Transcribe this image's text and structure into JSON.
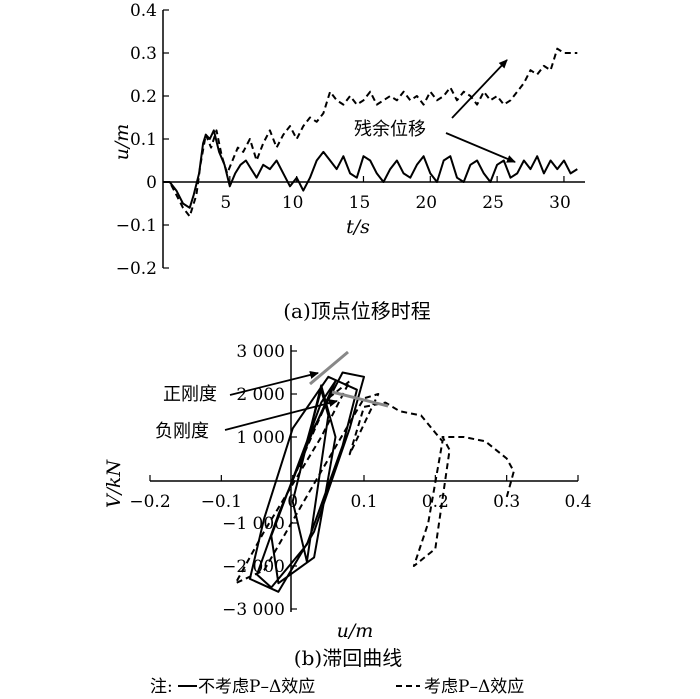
{
  "chart_data": [
    {
      "type": "line",
      "caption": "(a)顶点位移时程",
      "xlabel": "t/s",
      "ylabel": "u/m",
      "xlim": [
        0,
        31.5
      ],
      "ylim": [
        -0.2,
        0.4
      ],
      "xticks": [
        "5",
        "10",
        "15",
        "20",
        "25",
        "30"
      ],
      "yticks": [
        "0.4",
        "0.3",
        "0.2",
        "0.1",
        "0",
        "−0.1",
        "−0.2"
      ],
      "annotation": "残余位移",
      "series": [
        {
          "name": "不考虑P–Δ效应",
          "style": "solid",
          "x": [
            0,
            0.5,
            1,
            1.5,
            2,
            2.3,
            2.7,
            3,
            3.2,
            3.5,
            3.8,
            4.2,
            4.6,
            5,
            5.4,
            5.8,
            6.2,
            6.6,
            7,
            7.5,
            8,
            8.5,
            9,
            9.5,
            10,
            10.5,
            11,
            11.5,
            12,
            12.5,
            13,
            13.5,
            14,
            14.5,
            15,
            15.5,
            16,
            16.5,
            17,
            17.5,
            18,
            18.5,
            19,
            19.5,
            20,
            20.5,
            21,
            21.5,
            22,
            22.5,
            23,
            23.5,
            24,
            24.5,
            25,
            25.5,
            26,
            26.5,
            27,
            27.5,
            28,
            28.5,
            29,
            29.5,
            30,
            30.5,
            31
          ],
          "y": [
            0,
            0,
            -0.02,
            -0.05,
            -0.06,
            -0.03,
            0.02,
            0.09,
            0.11,
            0.1,
            0.12,
            0.07,
            0.04,
            -0.01,
            0.02,
            0.04,
            0.05,
            0.03,
            0.01,
            0.04,
            0.03,
            0.05,
            0.02,
            -0.01,
            0.01,
            -0.02,
            0.01,
            0.05,
            0.07,
            0.05,
            0.03,
            0.06,
            0.02,
            0.01,
            0.06,
            0.05,
            0.02,
            0.0,
            0.03,
            0.05,
            0.02,
            0.01,
            0.04,
            0.06,
            0.02,
            0.0,
            0.05,
            0.06,
            0.01,
            0.0,
            0.04,
            0.05,
            0.02,
            0.0,
            0.04,
            0.05,
            0.01,
            0.02,
            0.05,
            0.03,
            0.06,
            0.02,
            0.05,
            0.03,
            0.05,
            0.02,
            0.03
          ]
        },
        {
          "name": "考虑P–Δ效应",
          "style": "dashed",
          "x": [
            0,
            0.5,
            1,
            1.5,
            2,
            2.5,
            2.8,
            3.2,
            3.6,
            4,
            4.4,
            4.8,
            5.2,
            5.6,
            6,
            6.5,
            7,
            7.5,
            8,
            8.5,
            9,
            9.5,
            10,
            10.5,
            11,
            11.5,
            12,
            12.5,
            13,
            13.5,
            14,
            14.5,
            15,
            15.5,
            16,
            16.5,
            17,
            17.5,
            18,
            18.5,
            19,
            19.5,
            20,
            20.5,
            21,
            21.5,
            22,
            22.5,
            23,
            23.5,
            24,
            24.5,
            25,
            25.5,
            26,
            26.5,
            27,
            27.5,
            28,
            28.5,
            29,
            29.5,
            30,
            30.5,
            31
          ],
          "y": [
            0,
            0,
            -0.03,
            -0.06,
            -0.08,
            -0.03,
            0.04,
            0.11,
            0.08,
            0.12,
            0.06,
            0.02,
            0.05,
            0.08,
            0.07,
            0.1,
            0.05,
            0.09,
            0.12,
            0.08,
            0.11,
            0.13,
            0.1,
            0.13,
            0.15,
            0.14,
            0.16,
            0.21,
            0.19,
            0.18,
            0.2,
            0.18,
            0.19,
            0.21,
            0.18,
            0.19,
            0.2,
            0.19,
            0.21,
            0.19,
            0.2,
            0.18,
            0.21,
            0.19,
            0.2,
            0.22,
            0.19,
            0.21,
            0.2,
            0.18,
            0.21,
            0.19,
            0.2,
            0.18,
            0.19,
            0.21,
            0.23,
            0.26,
            0.25,
            0.27,
            0.26,
            0.31,
            0.3,
            0.3,
            0.3
          ]
        }
      ]
    },
    {
      "type": "line",
      "caption": "(b)滞回曲线",
      "xlabel": "u/m",
      "ylabel": "V/kN",
      "xlim": [
        -0.2,
        0.4
      ],
      "ylim": [
        -3000,
        3000
      ],
      "xticks": [
        "−0.2",
        "−0.1",
        "0",
        "0.1",
        "0.2",
        "0.3",
        "0.4"
      ],
      "yticks": [
        "3 000",
        "2 000",
        "1 000",
        "−1 000",
        "−2 000",
        "−3 000"
      ],
      "annotations": [
        "正刚度",
        "负刚度"
      ],
      "series": [
        {
          "name": "不考虑P–Δ效应",
          "style": "solid",
          "x": [
            0,
            0.04,
            0.06,
            0.03,
            -0.02,
            -0.05,
            -0.03,
            0.02,
            0.07,
            0.09,
            0.05,
            0.0,
            -0.04,
            -0.06,
            -0.02,
            0.03,
            0.08,
            0.1,
            0.07,
            0.02,
            -0.03,
            -0.02,
            0.03,
            0.06,
            0.04,
            0.0,
            0.02,
            0.05,
            0.04,
            0.01
          ],
          "y": [
            0,
            1800,
            2300,
            1200,
            -800,
            -2200,
            -2500,
            -1500,
            800,
            2100,
            2400,
            1200,
            -900,
            -2300,
            -2600,
            -1200,
            1200,
            2400,
            2500,
            900,
            -1300,
            -2400,
            -1800,
            1000,
            2200,
            -500,
            -1900,
            1500,
            2100,
            300
          ]
        },
        {
          "name": "考虑P–Δ效应",
          "style": "dashed",
          "x": [
            0,
            0.05,
            0.08,
            0.04,
            -0.04,
            -0.08,
            -0.04,
            0.04,
            0.1,
            0.12,
            0.08,
            0.1,
            0.13,
            0.15,
            0.18,
            0.2,
            0.21,
            0.19,
            0.17,
            0.2,
            0.22,
            0.21,
            0.24,
            0.27,
            0.3,
            0.31,
            0.3
          ],
          "y": [
            0,
            1900,
            2300,
            1000,
            -1200,
            -2400,
            -2100,
            200,
            1900,
            2000,
            600,
            1700,
            1800,
            1600,
            1500,
            1100,
            900,
            -1000,
            -2000,
            -1600,
            700,
            1000,
            1000,
            900,
            500,
            200,
            -400
          ]
        }
      ]
    }
  ],
  "note": {
    "prefix": "注:",
    "legend": [
      {
        "label": "不考虑P–Δ效应",
        "style": "solid"
      },
      {
        "label": "考虑P–Δ效应",
        "style": "dashed"
      }
    ]
  }
}
